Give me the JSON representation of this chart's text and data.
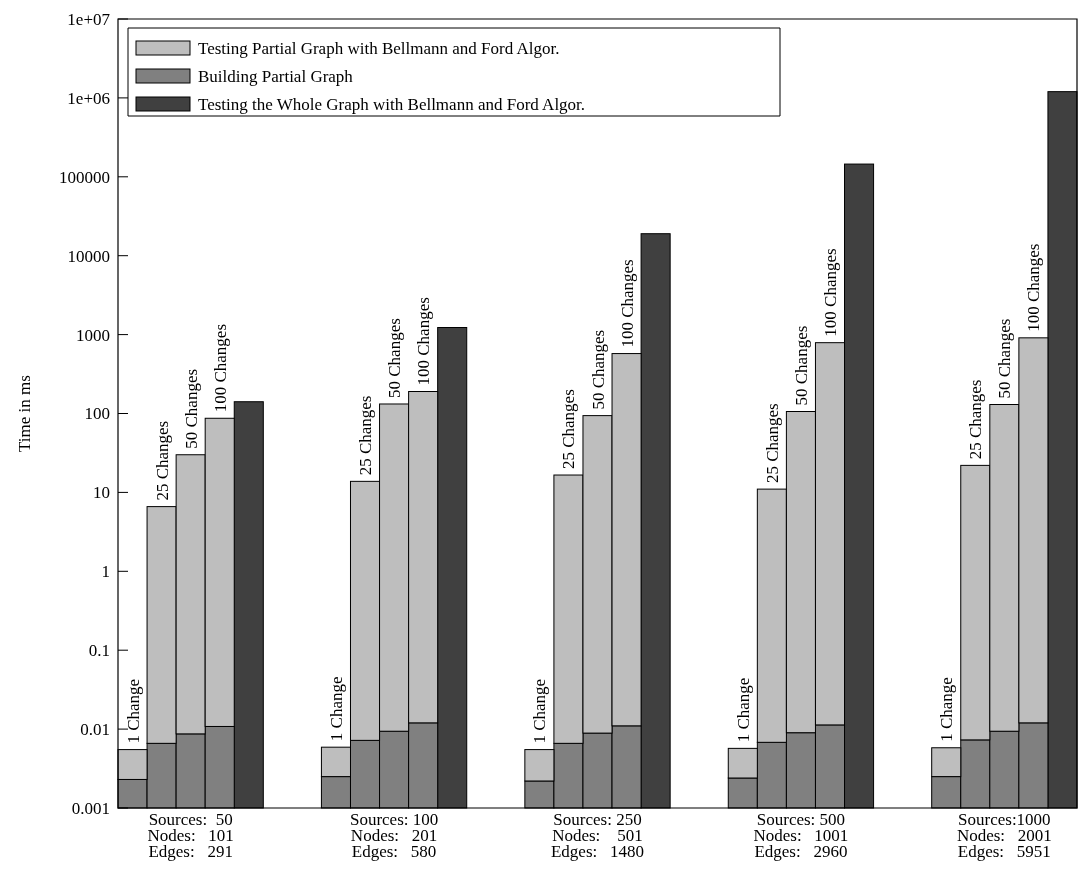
{
  "chart_data": {
    "type": "bar",
    "stacked": true,
    "log": true,
    "ylabel": "Time in ms",
    "categories": [
      null,
      null,
      "Sources:  50\nNodes:   101\nEdges:   291",
      null,
      null,
      null,
      null,
      null,
      null,
      "Sources: 100\nNodes:   201\nEdges:   580",
      null,
      null,
      null,
      null,
      null,
      null,
      "Sources: 250\nNodes:    501\nEdges:   1480",
      null,
      null,
      null,
      null,
      null,
      null,
      "Sources: 500\nNodes:   1001\nEdges:   2960",
      null,
      null,
      null,
      null,
      null,
      null,
      "Sources:1000\nNodes:   2001\nEdges:   5951",
      null,
      null
    ],
    "series": [
      {
        "name": "Testing the Whole Graph with Bellmann and Ford Algor.",
        "color": "#404040",
        "values": [
          null,
          null,
          null,
          null,
          141,
          null,
          null,
          null,
          null,
          null,
          null,
          1230,
          null,
          null,
          null,
          null,
          null,
          null,
          19000,
          null,
          null,
          null,
          null,
          null,
          null,
          145000,
          null,
          null,
          null,
          null,
          null,
          null,
          1200000
        ]
      },
      {
        "name": "Building Partial Graph",
        "color": "#808080",
        "values": [
          0.0023,
          0.0066,
          0.0087,
          0.0108,
          null,
          null,
          null,
          0.0025,
          0.0072,
          0.0094,
          0.012,
          null,
          null,
          null,
          0.0022,
          0.0066,
          0.0089,
          0.011,
          null,
          null,
          null,
          0.0024,
          0.0068,
          0.009,
          0.0113,
          null,
          null,
          null,
          0.0025,
          0.0073,
          0.0094,
          0.012,
          null
        ]
      },
      {
        "name": "Testing Partial Graph with Bellmann and Ford Algor.",
        "color": "#bebebe",
        "values": [
          0.0032,
          6.6,
          30,
          87,
          null,
          null,
          null,
          0.0034,
          13.8,
          132,
          190,
          null,
          null,
          null,
          0.0033,
          16.6,
          94,
          575,
          null,
          null,
          null,
          0.0033,
          11,
          106,
          790,
          null,
          null,
          null,
          0.0033,
          22,
          130,
          910,
          null
        ]
      }
    ],
    "ylim": [
      0.001,
      10000000
    ],
    "yticks": [
      0.001,
      0.01,
      0.1,
      1,
      10,
      100,
      1000,
      10000,
      100000,
      {
        "value": 1000000,
        "label": "1e+06"
      },
      {
        "value": 10000000,
        "label": "1e+07"
      }
    ],
    "legend": "top left",
    "grid": false,
    "annotations": [
      {
        "text": "1 Change",
        "y": 0.0055
      },
      {
        "text": "25 Changes",
        "y": 6.6066
      },
      {
        "text": "50 Changes",
        "y": 30.0087
      },
      {
        "text": "100 Changes",
        "y": 87.0108
      },
      {
        "text": "1 Change",
        "y": 0.0059
      },
      {
        "text": "25 Changes",
        "y": 13.8072
      },
      {
        "text": "50 Changes",
        "y": 132.0094
      },
      {
        "text": "100 Changes",
        "y": 190.012
      },
      {
        "text": "1 Change",
        "y": 0.0055
      },
      {
        "text": "25 Changes",
        "y": 16.6066
      },
      {
        "text": "50 Changes",
        "y": 94.0089
      },
      {
        "text": "100 Changes",
        "y": 575.011
      },
      {
        "text": "1 Change",
        "y": 0.0057
      },
      {
        "text": "25 Changes",
        "y": 11.0068
      },
      {
        "text": "50 Changes",
        "y": 106.009
      },
      {
        "text": "100 Changes",
        "y": 790.0113
      },
      {
        "text": "1 Change",
        "y": 0.0058
      },
      {
        "text": "25 Changes",
        "y": 22.0073
      },
      {
        "text": "50 Changes",
        "y": 130.0094
      },
      {
        "text": "100 Changes",
        "y": 910.012
      }
    ]
  }
}
